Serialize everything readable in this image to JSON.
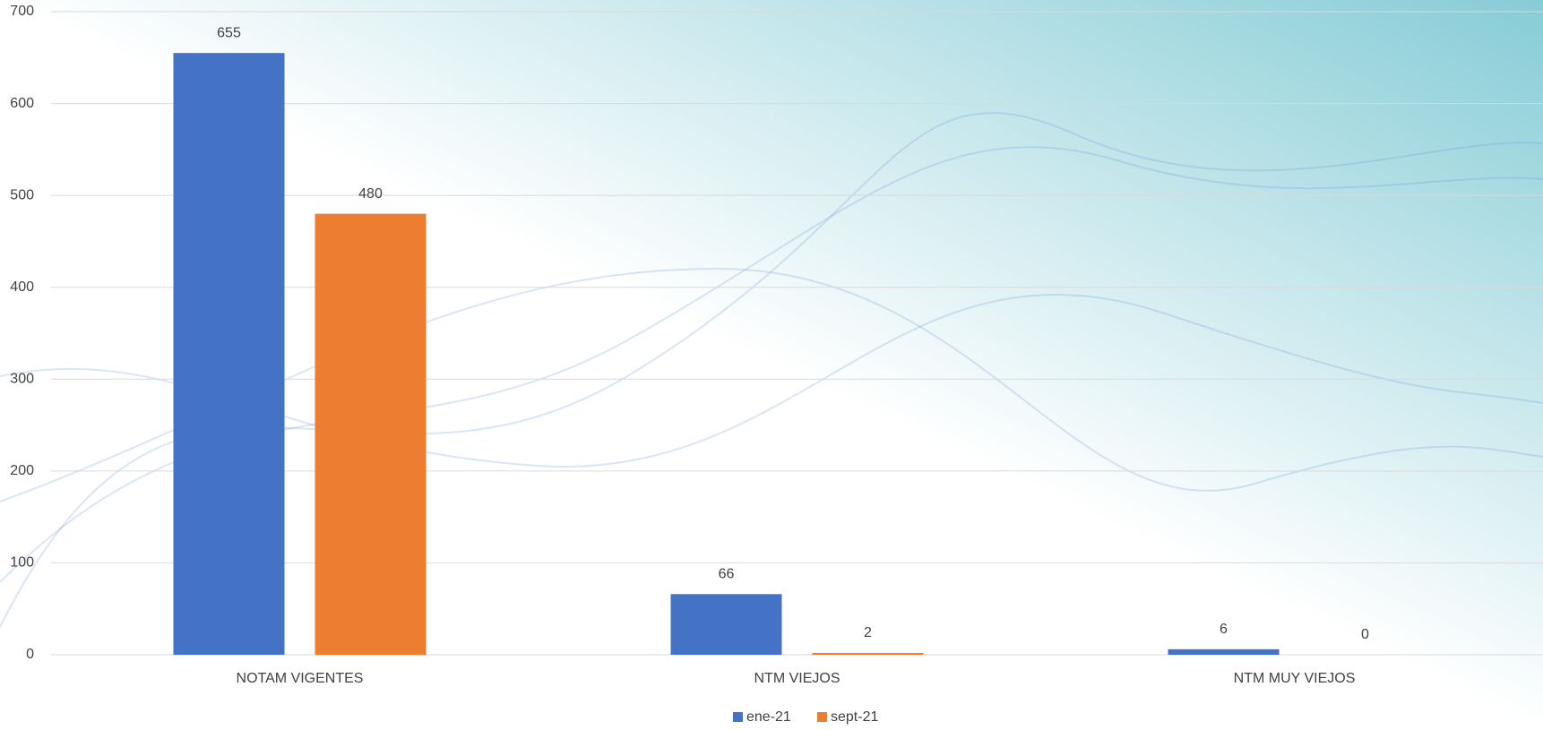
{
  "chart_data": {
    "type": "bar",
    "categories": [
      "NOTAM VIGENTES",
      "NTM VIEJOS",
      "NTM MUY VIEJOS"
    ],
    "series": [
      {
        "name": "ene-21",
        "color": "#4472c4",
        "values": [
          655,
          66,
          6
        ]
      },
      {
        "name": "sept-21",
        "color": "#ed7d31",
        "values": [
          480,
          2,
          0
        ]
      }
    ],
    "ylim": [
      0,
      700
    ],
    "yticks": [
      0,
      100,
      200,
      300,
      400,
      500,
      600,
      700
    ],
    "grid": true,
    "legend": "bottom"
  }
}
